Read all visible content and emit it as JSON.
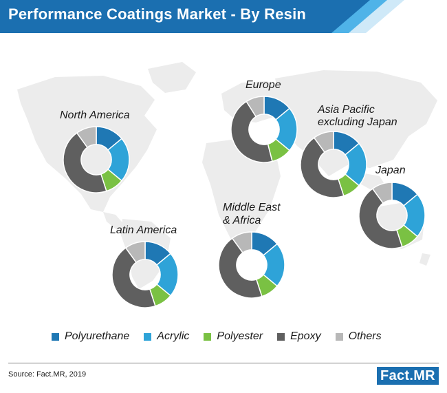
{
  "title": "Performance Coatings Market - By Resin",
  "source": "Source: Fact.MR, 2019",
  "logo": "Fact.MR",
  "colors": {
    "header_blue": "#1b6fb0",
    "accent_light": "#4fb3e8",
    "map_gray": "#ececec"
  },
  "chart_data": {
    "type": "donut",
    "title": "Performance Coatings Market - By Resin",
    "categories": [
      "Polyurethane",
      "Acrylic",
      "Polyester",
      "Epoxy",
      "Others"
    ],
    "category_colors": [
      "#1f78b4",
      "#2ea3d8",
      "#7ac143",
      "#5f5f5f",
      "#b8b8b8"
    ],
    "legend_position": "bottom",
    "regions": [
      {
        "name": "North America",
        "values": [
          14,
          22,
          9,
          45,
          10
        ]
      },
      {
        "name": "Europe",
        "values": [
          14,
          22,
          10,
          45,
          9
        ]
      },
      {
        "name": "Asia Pacific excluding Japan",
        "label_lines": [
          "Asia Pacific",
          "excluding Japan"
        ],
        "values": [
          14,
          22,
          9,
          45,
          10
        ]
      },
      {
        "name": "Japan",
        "values": [
          14,
          22,
          9,
          45,
          10
        ]
      },
      {
        "name": "Middle East & Africa",
        "label_lines": [
          "Middle East",
          "& Africa"
        ],
        "values": [
          14,
          22,
          9,
          45,
          10
        ]
      },
      {
        "name": "Latin America",
        "values": [
          14,
          22,
          9,
          45,
          10
        ]
      }
    ]
  }
}
